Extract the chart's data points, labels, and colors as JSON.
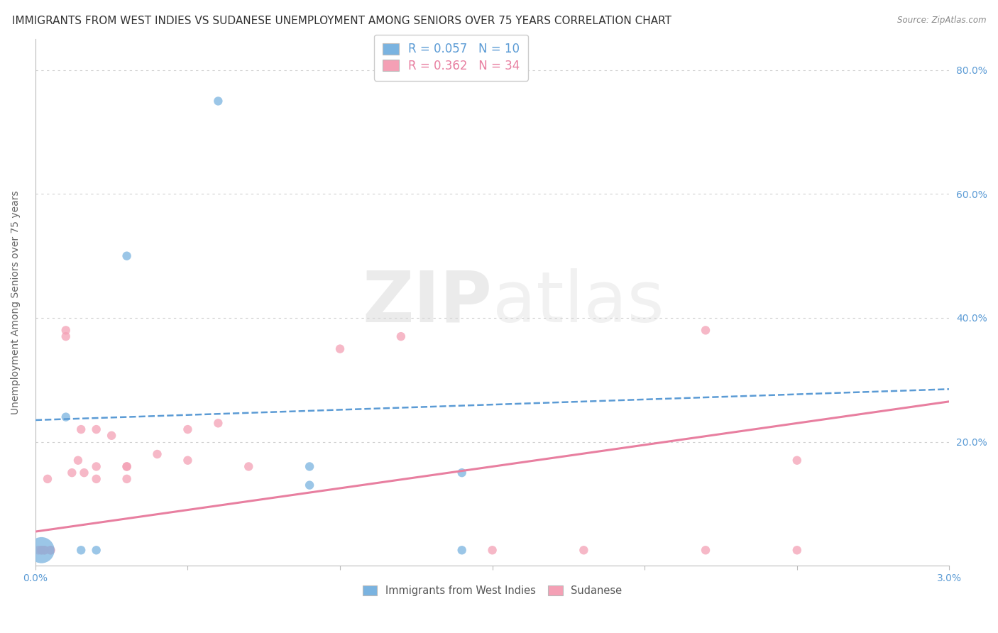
{
  "title": "IMMIGRANTS FROM WEST INDIES VS SUDANESE UNEMPLOYMENT AMONG SENIORS OVER 75 YEARS CORRELATION CHART",
  "source": "Source: ZipAtlas.com",
  "ylabel": "Unemployment Among Seniors over 75 years",
  "xlim": [
    0.0,
    0.03
  ],
  "ylim": [
    0.0,
    0.85
  ],
  "xticks": [
    0.0,
    0.005,
    0.01,
    0.015,
    0.02,
    0.025,
    0.03
  ],
  "xticklabels": [
    "0.0%",
    "",
    "",
    "",
    "",
    "",
    "3.0%"
  ],
  "yticks": [
    0.0,
    0.2,
    0.4,
    0.6,
    0.8
  ],
  "yticklabels_right": [
    "",
    "20.0%",
    "40.0%",
    "60.0%",
    "80.0%"
  ],
  "legend_r_blue": "R = 0.057",
  "legend_n_blue": "N = 10",
  "legend_r_pink": "R = 0.362",
  "legend_n_pink": "N = 34",
  "blue_color": "#7ab3e0",
  "pink_color": "#f4a0b5",
  "blue_line_color": "#5b9bd5",
  "pink_line_color": "#e87fa0",
  "watermark_zip": "ZIP",
  "watermark_atlas": "atlas",
  "blue_scatter_x": [
    0.0002,
    0.001,
    0.0015,
    0.002,
    0.003,
    0.006,
    0.009,
    0.009,
    0.014,
    0.014
  ],
  "blue_scatter_y": [
    0.025,
    0.24,
    0.025,
    0.025,
    0.5,
    0.75,
    0.13,
    0.16,
    0.15,
    0.025
  ],
  "blue_sizes": [
    700,
    80,
    80,
    80,
    80,
    80,
    80,
    80,
    80,
    80
  ],
  "pink_scatter_x": [
    0.0001,
    0.0002,
    0.0002,
    0.0003,
    0.0003,
    0.0004,
    0.0005,
    0.0005,
    0.001,
    0.001,
    0.0012,
    0.0014,
    0.0015,
    0.0016,
    0.002,
    0.002,
    0.002,
    0.0025,
    0.003,
    0.003,
    0.003,
    0.004,
    0.005,
    0.005,
    0.006,
    0.007,
    0.01,
    0.012,
    0.015,
    0.018,
    0.022,
    0.022,
    0.025,
    0.025
  ],
  "pink_scatter_y": [
    0.025,
    0.025,
    0.025,
    0.025,
    0.025,
    0.14,
    0.025,
    0.025,
    0.37,
    0.38,
    0.15,
    0.17,
    0.22,
    0.15,
    0.14,
    0.16,
    0.22,
    0.21,
    0.14,
    0.16,
    0.16,
    0.18,
    0.17,
    0.22,
    0.23,
    0.16,
    0.35,
    0.37,
    0.025,
    0.025,
    0.38,
    0.025,
    0.17,
    0.025
  ],
  "pink_sizes": [
    80,
    80,
    80,
    80,
    80,
    80,
    80,
    80,
    80,
    80,
    80,
    80,
    80,
    80,
    80,
    80,
    80,
    80,
    80,
    80,
    80,
    80,
    80,
    80,
    80,
    80,
    80,
    80,
    80,
    80,
    80,
    80,
    80,
    80
  ],
  "blue_line_x": [
    0.0,
    0.03
  ],
  "blue_line_y": [
    0.235,
    0.285
  ],
  "pink_line_x": [
    0.0,
    0.03
  ],
  "pink_line_y": [
    0.055,
    0.265
  ],
  "bg_color": "#ffffff",
  "grid_color": "#d0d0d0",
  "title_fontsize": 11,
  "axis_label_fontsize": 10,
  "tick_fontsize": 10,
  "tick_color_blue": "#5b9bd5",
  "tick_color_pink": "#f4a0b5"
}
